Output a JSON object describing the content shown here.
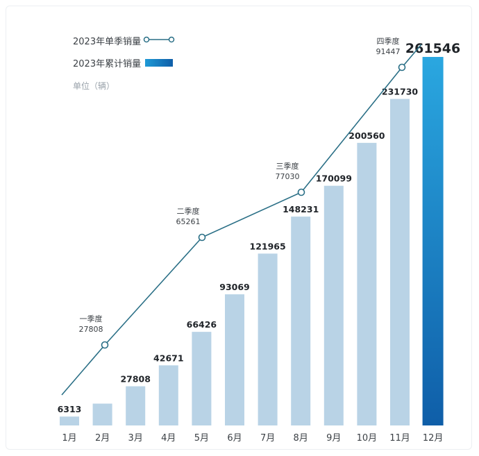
{
  "legend": {
    "quarterly": "2023年单季销量",
    "cumulative": "2023年累计销量",
    "unit": "单位（辆）"
  },
  "colors": {
    "bar": "#b9d3e6",
    "bar_highlight_top": "#2aa7e0",
    "bar_highlight_bottom": "#0f5ea8",
    "line": "#2a6f86",
    "marker_fill": "#ffffff"
  },
  "chart_data": {
    "type": "bar",
    "categories": [
      "1月",
      "2月",
      "3月",
      "4月",
      "5月",
      "6月",
      "7月",
      "8月",
      "9月",
      "10月",
      "11月",
      "12月"
    ],
    "series": [
      {
        "name": "2023年累计销量",
        "values": [
          6313,
          null,
          27808,
          42671,
          66426,
          93069,
          121965,
          148231,
          170099,
          200560,
          231730,
          261546
        ],
        "labels": [
          "6313",
          "",
          "27808",
          "42671",
          "66426",
          "93069",
          "121965",
          "148231",
          "170099",
          "200560",
          "231730",
          "261546"
        ]
      },
      {
        "name": "2023年单季销量",
        "type": "line",
        "points": [
          {
            "label": "一季度",
            "value": 27808,
            "x": "2月"
          },
          {
            "label": "二季度",
            "value": 65261,
            "x": "5月"
          },
          {
            "label": "三季度",
            "value": 77030,
            "x": "8月"
          },
          {
            "label": "四季度",
            "value": 91447,
            "x": "11月"
          }
        ]
      }
    ],
    "estimated_values": {
      "2月": 15500
    },
    "highlight_category": "12月",
    "ylim": [
      0,
      265000
    ],
    "grid": false
  }
}
